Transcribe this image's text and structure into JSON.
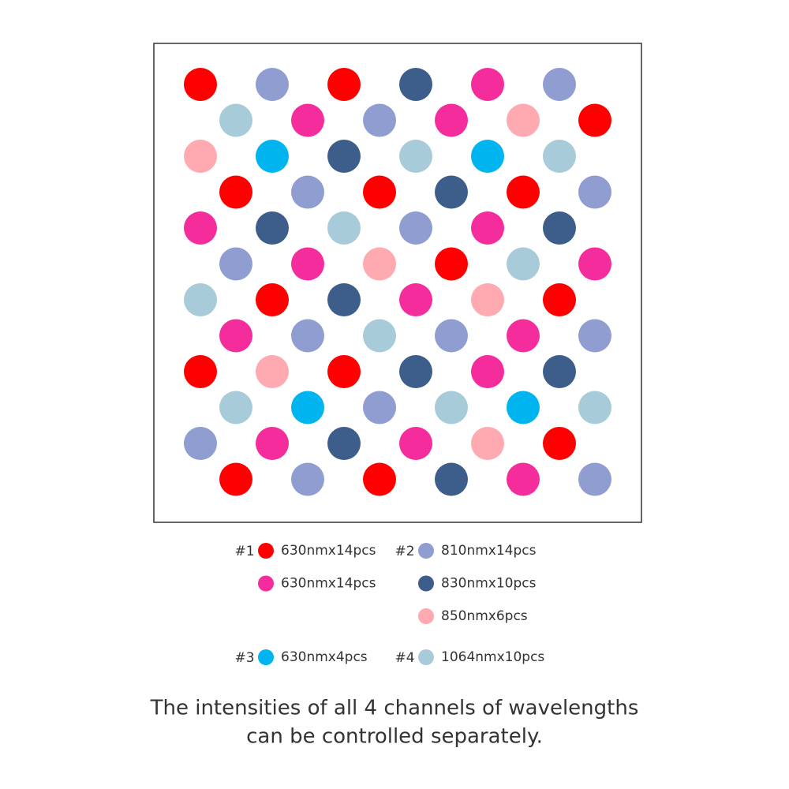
{
  "legend": [
    {
      "channel": "#1",
      "items": [
        {
          "label": "630nmx14pcs",
          "color": "#ff0000"
        },
        {
          "label": "630nmx14pcs",
          "color": "#f52d9c"
        }
      ]
    },
    {
      "channel": "#2",
      "items": [
        {
          "label": "810nmx14pcs",
          "color": "#8f9dd1"
        },
        {
          "label": "830nmx10pcs",
          "color": "#3d5e8a"
        },
        {
          "label": "850nmx6pcs",
          "color": "#ffa9b0"
        }
      ]
    },
    {
      "channel": "#3",
      "items": [
        {
          "label": "630nmx4pcs",
          "color": "#00b5ef"
        }
      ]
    },
    {
      "channel": "#4",
      "items": [
        {
          "label": "1064nmx10pcs",
          "color": "#a7cbd8"
        }
      ]
    }
  ],
  "caption": [
    "The intensities of all 4 channels of wavelengths",
    "can be controlled separately."
  ]
}
